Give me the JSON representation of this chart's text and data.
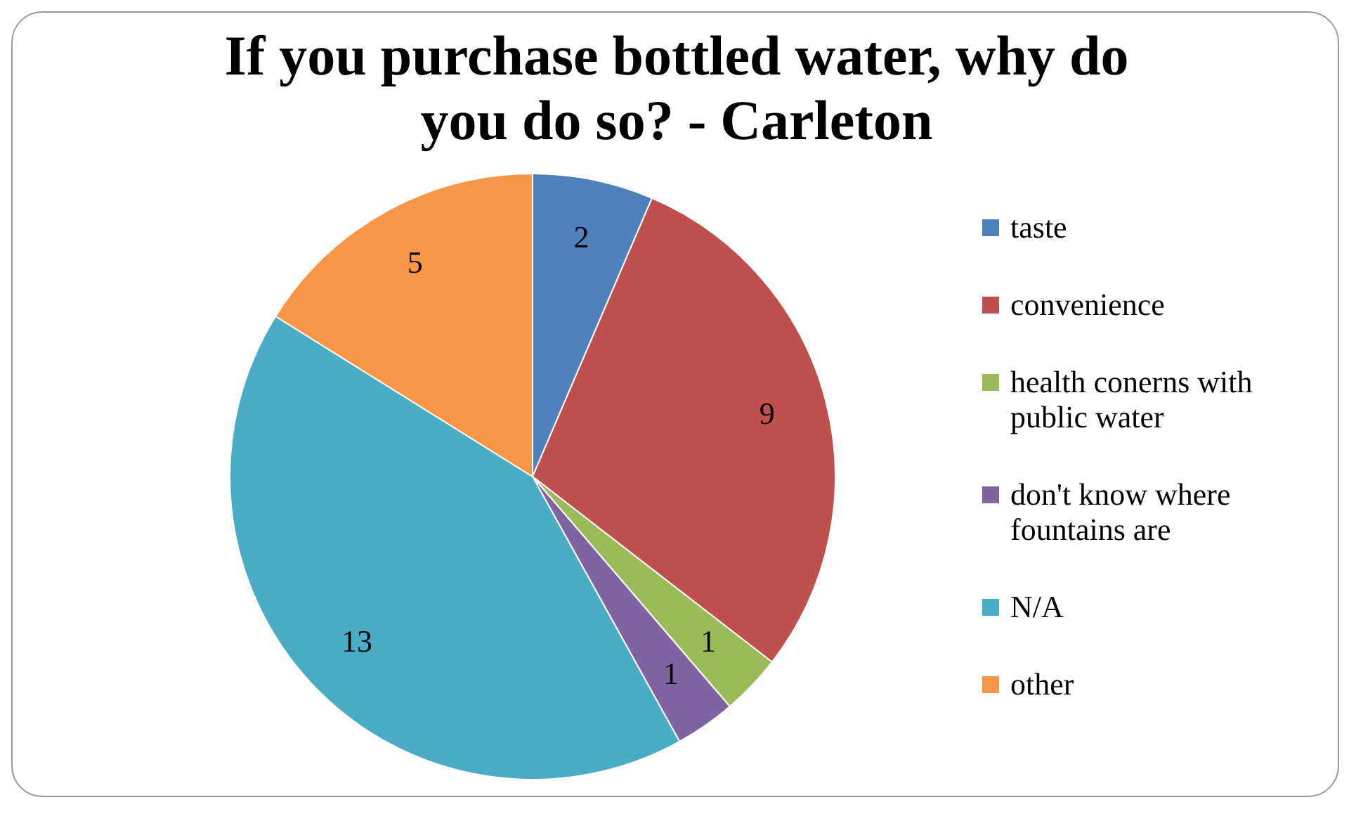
{
  "chart_data": {
    "type": "pie",
    "title": "If you purchase bottled water, why do you do so? - Carleton",
    "categories": [
      "taste",
      "convenience",
      "health conerns with public water",
      "don't know where fountains are",
      "N/A",
      "other"
    ],
    "values": [
      2,
      9,
      1,
      1,
      13,
      5
    ],
    "colors": [
      "#4f81bd",
      "#c0504d",
      "#9bbb59",
      "#8064a2",
      "#4bacc6",
      "#f79646"
    ],
    "data_labels": true,
    "legend": "right"
  }
}
